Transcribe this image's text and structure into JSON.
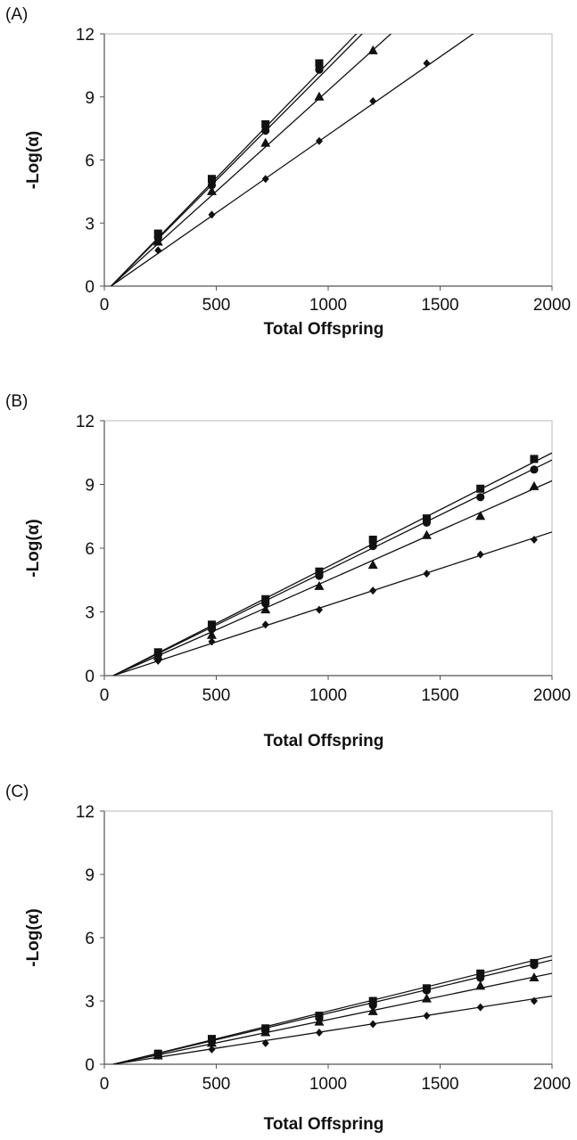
{
  "chart_data": [
    {
      "type": "scatter",
      "panel_label": "(A)",
      "xlabel": "Total Offspring",
      "ylabel": "-Log(α)",
      "xlim": [
        0,
        2000
      ],
      "ylim": [
        0,
        12
      ],
      "xticks": [
        "0",
        "500",
        "1000",
        "1500",
        "2000"
      ],
      "yticks": [
        "0",
        "3",
        "6",
        "9",
        "12"
      ],
      "grid": false,
      "series": [
        {
          "marker": "square",
          "x": [
            240,
            480,
            720,
            960
          ],
          "y": [
            2.5,
            5.1,
            7.7,
            10.6
          ],
          "fit": {
            "x0": 30,
            "slope": 0.01095
          }
        },
        {
          "marker": "circle",
          "x": [
            240,
            480,
            720,
            960
          ],
          "y": [
            2.3,
            4.8,
            7.4,
            10.3
          ],
          "fit": {
            "x0": 30,
            "slope": 0.0107
          }
        },
        {
          "marker": "triangle",
          "x": [
            240,
            480,
            720,
            960,
            1200
          ],
          "y": [
            2.1,
            4.5,
            6.8,
            9.0,
            11.2
          ],
          "fit": {
            "x0": 30,
            "slope": 0.0096
          }
        },
        {
          "marker": "diamond",
          "x": [
            240,
            480,
            720,
            960,
            1200,
            1440
          ],
          "y": [
            1.7,
            3.4,
            5.1,
            6.9,
            8.8,
            10.6
          ],
          "fit": {
            "x0": 30,
            "slope": 0.00742
          }
        }
      ]
    },
    {
      "type": "scatter",
      "panel_label": "(B)",
      "xlabel": "Total Offspring",
      "ylabel": "-Log(α)",
      "xlim": [
        0,
        2000
      ],
      "ylim": [
        0,
        12
      ],
      "xticks": [
        "0",
        "500",
        "1000",
        "1500",
        "2000"
      ],
      "yticks": [
        "0",
        "3",
        "6",
        "9",
        "12"
      ],
      "grid": false,
      "series": [
        {
          "marker": "square",
          "x": [
            240,
            480,
            720,
            960,
            1200,
            1440,
            1680,
            1920
          ],
          "y": [
            1.1,
            2.4,
            3.6,
            4.9,
            6.4,
            7.4,
            8.8,
            10.2
          ],
          "fit": {
            "x0": 40,
            "slope": 0.00535
          }
        },
        {
          "marker": "circle",
          "x": [
            240,
            480,
            720,
            960,
            1200,
            1440,
            1680,
            1920
          ],
          "y": [
            1.0,
            2.2,
            3.4,
            4.7,
            6.1,
            7.2,
            8.4,
            9.7
          ],
          "fit": {
            "x0": 40,
            "slope": 0.00518
          }
        },
        {
          "marker": "triangle",
          "x": [
            240,
            480,
            720,
            960,
            1200,
            1440,
            1680,
            1920
          ],
          "y": [
            0.9,
            1.9,
            3.1,
            4.2,
            5.2,
            6.6,
            7.5,
            8.9
          ],
          "fit": {
            "x0": 40,
            "slope": 0.00468
          }
        },
        {
          "marker": "diamond",
          "x": [
            240,
            480,
            720,
            960,
            1200,
            1440,
            1680,
            1920
          ],
          "y": [
            0.7,
            1.6,
            2.4,
            3.1,
            4.0,
            4.8,
            5.7,
            6.4
          ],
          "fit": {
            "x0": 40,
            "slope": 0.00345
          }
        }
      ]
    },
    {
      "type": "scatter",
      "panel_label": "(C)",
      "xlabel": "Total Offspring",
      "ylabel": "-Log(α)",
      "xlim": [
        0,
        2000
      ],
      "ylim": [
        0,
        12
      ],
      "xticks": [
        "0",
        "500",
        "1000",
        "1500",
        "2000"
      ],
      "yticks": [
        "0",
        "3",
        "6",
        "9",
        "12"
      ],
      "grid": false,
      "series": [
        {
          "marker": "square",
          "x": [
            240,
            480,
            720,
            960,
            1200,
            1440,
            1680,
            1920
          ],
          "y": [
            0.5,
            1.2,
            1.7,
            2.3,
            3.0,
            3.6,
            4.3,
            4.8
          ],
          "fit": {
            "x0": 40,
            "slope": 0.00262
          }
        },
        {
          "marker": "circle",
          "x": [
            240,
            480,
            720,
            960,
            1200,
            1440,
            1680,
            1920
          ],
          "y": [
            0.5,
            1.1,
            1.6,
            2.2,
            2.8,
            3.5,
            4.1,
            4.7
          ],
          "fit": {
            "x0": 40,
            "slope": 0.00252
          }
        },
        {
          "marker": "triangle",
          "x": [
            240,
            480,
            720,
            960,
            1200,
            1440,
            1680,
            1920
          ],
          "y": [
            0.4,
            1.0,
            1.5,
            2.0,
            2.5,
            3.1,
            3.7,
            4.1
          ],
          "fit": {
            "x0": 40,
            "slope": 0.0022
          }
        },
        {
          "marker": "diamond",
          "x": [
            240,
            480,
            720,
            960,
            1200,
            1440,
            1680,
            1920
          ],
          "y": [
            0.4,
            0.7,
            1.0,
            1.5,
            1.9,
            2.3,
            2.7,
            3.0
          ],
          "fit": {
            "x0": 40,
            "slope": 0.00165
          }
        }
      ]
    }
  ]
}
